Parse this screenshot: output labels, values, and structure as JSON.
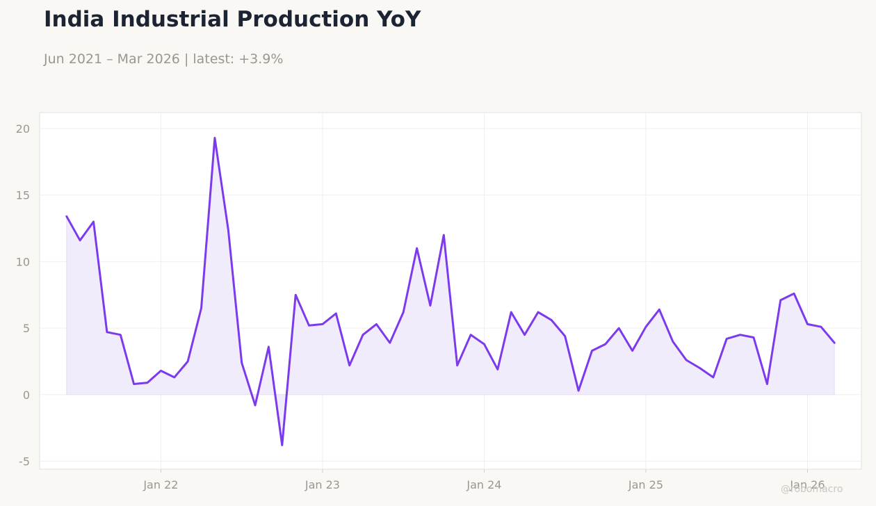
{
  "header": {
    "title": "India Industrial Production YoY",
    "subtitle": "Jun 2021 – Mar 2026 | latest: +3.9%"
  },
  "watermark": "@robomacro",
  "colors": {
    "line": "#7c3aed",
    "fill": "#f1ecfc",
    "background": "#f9f8f5",
    "plot_background": "#ffffff",
    "grid": "#f0efed"
  },
  "chart_data": {
    "type": "area",
    "title": "India Industrial Production YoY",
    "subtitle": "Jun 2021 – Mar 2026 | latest: +3.9%",
    "xlabel": "",
    "ylabel": "",
    "grid": true,
    "ylim": [
      -5.6,
      21.2
    ],
    "xlim": [
      "2021-04",
      "2026-05"
    ],
    "y_ticks": [
      -5,
      0,
      5,
      10,
      15,
      20
    ],
    "y_tick_labels": [
      "-5",
      "0",
      "5",
      "10",
      "15",
      "20"
    ],
    "x_ticks": [
      "2022-01",
      "2023-01",
      "2024-01",
      "2025-01",
      "2026-01"
    ],
    "x_tick_labels": [
      "Jan 22",
      "Jan 23",
      "Jan 24",
      "Jan 25",
      "Jan 26"
    ],
    "series": [
      {
        "x": [
          "2021-06",
          "2021-07",
          "2021-08",
          "2021-09",
          "2021-10",
          "2021-11",
          "2021-12",
          "2022-01",
          "2022-02",
          "2022-03",
          "2022-04",
          "2022-05",
          "2022-06",
          "2022-07",
          "2022-08",
          "2022-09",
          "2022-10",
          "2022-11",
          "2022-12",
          "2023-01",
          "2023-02",
          "2023-03",
          "2023-04",
          "2023-05",
          "2023-06",
          "2023-07",
          "2023-08",
          "2023-09",
          "2023-10",
          "2023-11",
          "2023-12",
          "2024-01",
          "2024-02",
          "2024-03",
          "2024-04",
          "2024-05",
          "2024-06",
          "2024-07",
          "2024-08",
          "2024-09",
          "2024-10",
          "2024-11",
          "2024-12",
          "2025-01",
          "2025-02",
          "2025-03",
          "2025-04",
          "2025-05",
          "2025-06",
          "2025-07",
          "2025-08",
          "2025-09",
          "2025-10",
          "2025-11",
          "2025-12",
          "2026-01",
          "2026-02",
          "2026-03"
        ],
        "values": [
          13.4,
          11.6,
          13.0,
          4.7,
          4.5,
          0.8,
          0.9,
          1.8,
          1.3,
          2.5,
          6.5,
          19.3,
          12.4,
          2.4,
          -0.8,
          3.6,
          -3.8,
          7.5,
          5.2,
          5.3,
          6.1,
          2.2,
          4.5,
          5.3,
          3.9,
          6.2,
          11.0,
          6.7,
          12.0,
          2.2,
          4.5,
          3.8,
          1.9,
          6.2,
          4.5,
          6.2,
          5.6,
          4.4,
          0.3,
          3.3,
          3.8,
          5.0,
          3.3,
          5.1,
          6.4,
          4.0,
          2.6,
          2.0,
          1.3,
          4.2,
          4.5,
          4.3,
          0.8,
          7.1,
          7.6,
          5.3,
          5.1,
          3.9
        ]
      }
    ]
  }
}
